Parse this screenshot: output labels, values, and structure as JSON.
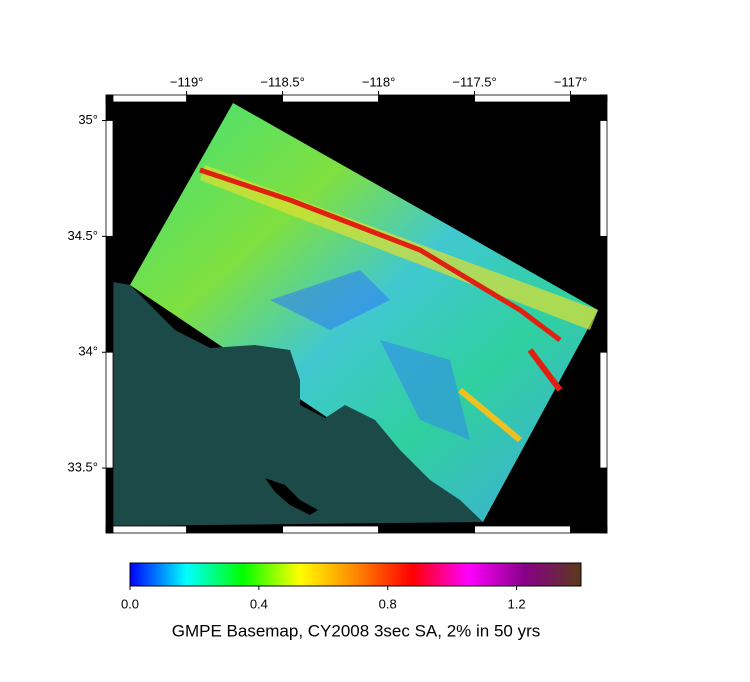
{
  "map": {
    "caption": "GMPE Basemap, CY2008 3sec SA, 2% in 50 yrs",
    "lon_range": [
      -119.42,
      -116.81
    ],
    "lat_range": [
      33.22,
      35.11
    ],
    "lon_ticks": [
      {
        "value": -119,
        "label": "−119°"
      },
      {
        "value": -118.5,
        "label": "−118.5°"
      },
      {
        "value": -118,
        "label": "−118°"
      },
      {
        "value": -117.5,
        "label": "−117.5°"
      },
      {
        "value": -117,
        "label": "−117°"
      }
    ],
    "lat_ticks": [
      {
        "value": 35,
        "label": "35°"
      },
      {
        "value": 34.5,
        "label": "34.5°"
      },
      {
        "value": 34,
        "label": "34°"
      },
      {
        "value": 33.5,
        "label": "33.5°"
      }
    ],
    "colorbar": {
      "range": [
        0,
        1.4
      ],
      "ticks": [
        {
          "value": 0,
          "label": "0.0"
        },
        0.4,
        0.8,
        1.2
      ],
      "colors": [
        "#0000ff",
        "#00ffff",
        "#00ff00",
        "#ffff00",
        "#ff8800",
        "#ff0000",
        "#ff00ff",
        "#880088",
        "#5a3a1a"
      ]
    }
  }
}
